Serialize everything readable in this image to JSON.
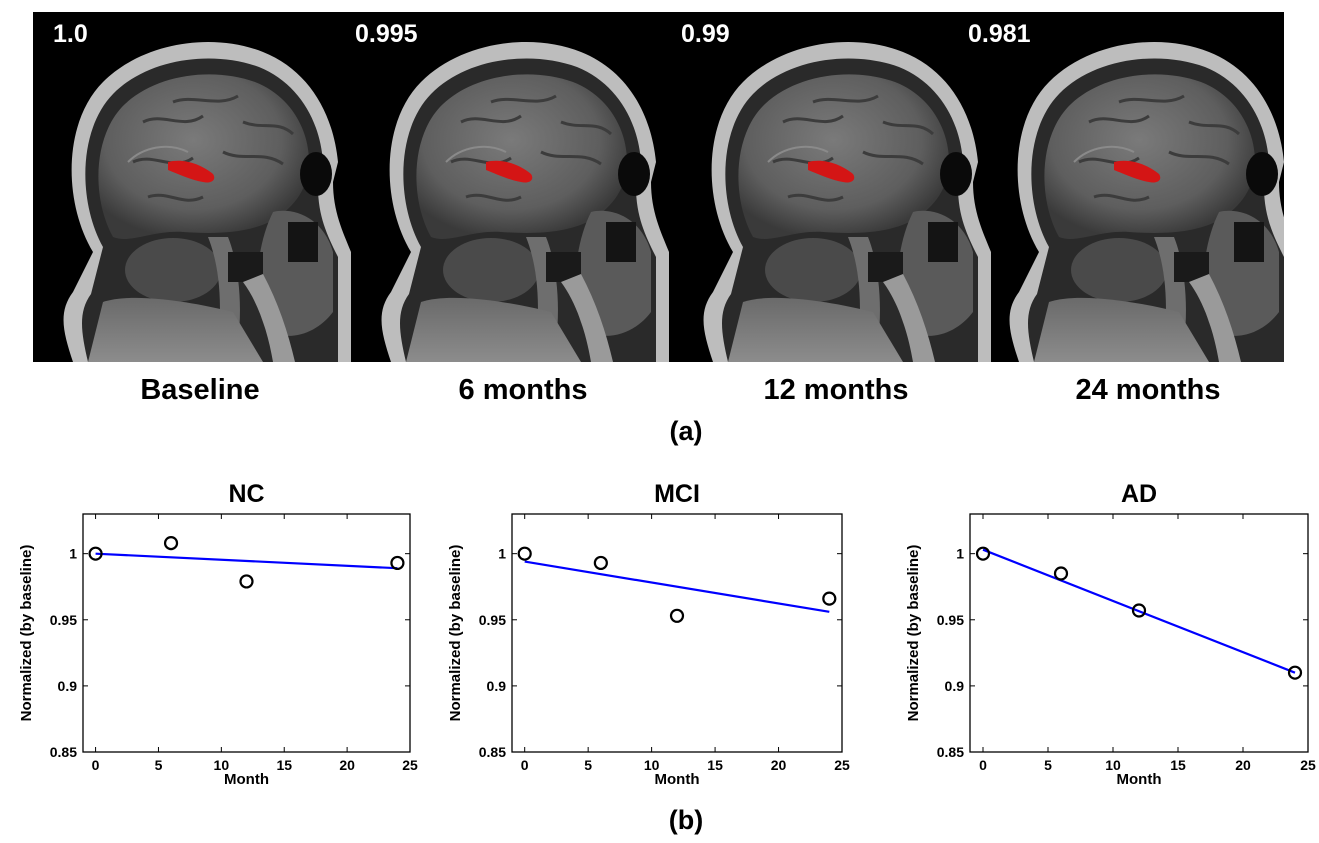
{
  "figure": {
    "scans": [
      {
        "value": "1.0",
        "timepoint": "Baseline"
      },
      {
        "value": "0.995",
        "timepoint": "6 months"
      },
      {
        "value": "0.99",
        "timepoint": "12 months"
      },
      {
        "value": "0.981",
        "timepoint": "24 months"
      }
    ],
    "panel_a_label": "(a)",
    "panel_b_label": "(b)",
    "colors": {
      "scan_background": "#000000",
      "hippocampus_overlay": "#d41515",
      "fit_line": "#0000ff",
      "points": "#000000"
    }
  },
  "chart_data": [
    {
      "type": "scatter",
      "title": "NC",
      "xlabel": "Month",
      "ylabel": "Normalized (by baseline)",
      "xlim": [
        -1,
        25
      ],
      "ylim": [
        0.85,
        1.03
      ],
      "x_ticks": [
        0,
        5,
        10,
        15,
        20,
        25
      ],
      "y_ticks": [
        0.85,
        0.9,
        0.95,
        1
      ],
      "x_tick_labels": [
        "0",
        "5",
        "10",
        "15",
        "20",
        "25"
      ],
      "y_tick_labels": [
        "0.85",
        "0.9",
        "0.95",
        "1"
      ],
      "x": [
        0,
        6,
        12,
        24
      ],
      "y": [
        1.0,
        1.008,
        0.979,
        0.993
      ],
      "fit_line": {
        "x": [
          0,
          24
        ],
        "y": [
          1.0,
          0.989
        ]
      }
    },
    {
      "type": "scatter",
      "title": "MCI",
      "xlabel": "Month",
      "ylabel": "Normalized (by baseline)",
      "xlim": [
        -1,
        25
      ],
      "ylim": [
        0.85,
        1.03
      ],
      "x_ticks": [
        0,
        5,
        10,
        15,
        20,
        25
      ],
      "y_ticks": [
        0.85,
        0.9,
        0.95,
        1
      ],
      "x_tick_labels": [
        "0",
        "5",
        "10",
        "15",
        "20",
        "25"
      ],
      "y_tick_labels": [
        "0.85",
        "0.9",
        "0.95",
        "1"
      ],
      "x": [
        0,
        6,
        12,
        24
      ],
      "y": [
        1.0,
        0.993,
        0.953,
        0.966
      ],
      "fit_line": {
        "x": [
          0,
          24
        ],
        "y": [
          0.994,
          0.956
        ]
      }
    },
    {
      "type": "scatter",
      "title": "AD",
      "xlabel": "Month",
      "ylabel": "Normalized (by baseline)",
      "xlim": [
        -1,
        25
      ],
      "ylim": [
        0.85,
        1.03
      ],
      "x_ticks": [
        0,
        5,
        10,
        15,
        20,
        25
      ],
      "y_ticks": [
        0.85,
        0.9,
        0.95,
        1
      ],
      "x_tick_labels": [
        "0",
        "5",
        "10",
        "15",
        "20",
        "25"
      ],
      "y_tick_labels": [
        "0.85",
        "0.9",
        "0.95",
        "1"
      ],
      "x": [
        0,
        6,
        12,
        24
      ],
      "y": [
        1.0,
        0.985,
        0.957,
        0.91
      ],
      "fit_line": {
        "x": [
          0,
          24
        ],
        "y": [
          1.003,
          0.91
        ]
      }
    }
  ]
}
